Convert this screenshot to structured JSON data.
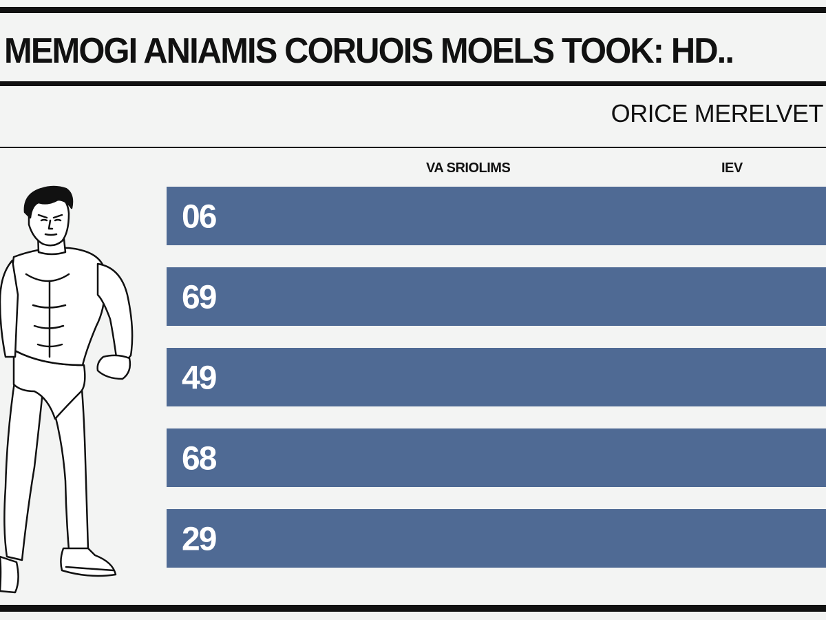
{
  "header": {
    "title": "MEMOGI ANIAMIS CORUOIS MOELS TOOK: HD..",
    "subtitle": "ORICE MERELVET"
  },
  "chart_data": {
    "type": "bar",
    "orientation": "horizontal",
    "column_headers": [
      "VA SRIOLIMS",
      "IEV"
    ],
    "categories": [
      "06",
      "69",
      "49",
      "68",
      "29"
    ],
    "value_labels": [
      "06",
      "69",
      "49",
      "68",
      "29"
    ],
    "bar_fill": 1.0,
    "grid": false,
    "legend": "none"
  },
  "colors": {
    "bar": "#4f6a94",
    "bar_label": "#ffffff",
    "ink": "#111111",
    "background": "#f3f4f3"
  },
  "illustration": {
    "icon": "muscular-man-line-drawing"
  }
}
